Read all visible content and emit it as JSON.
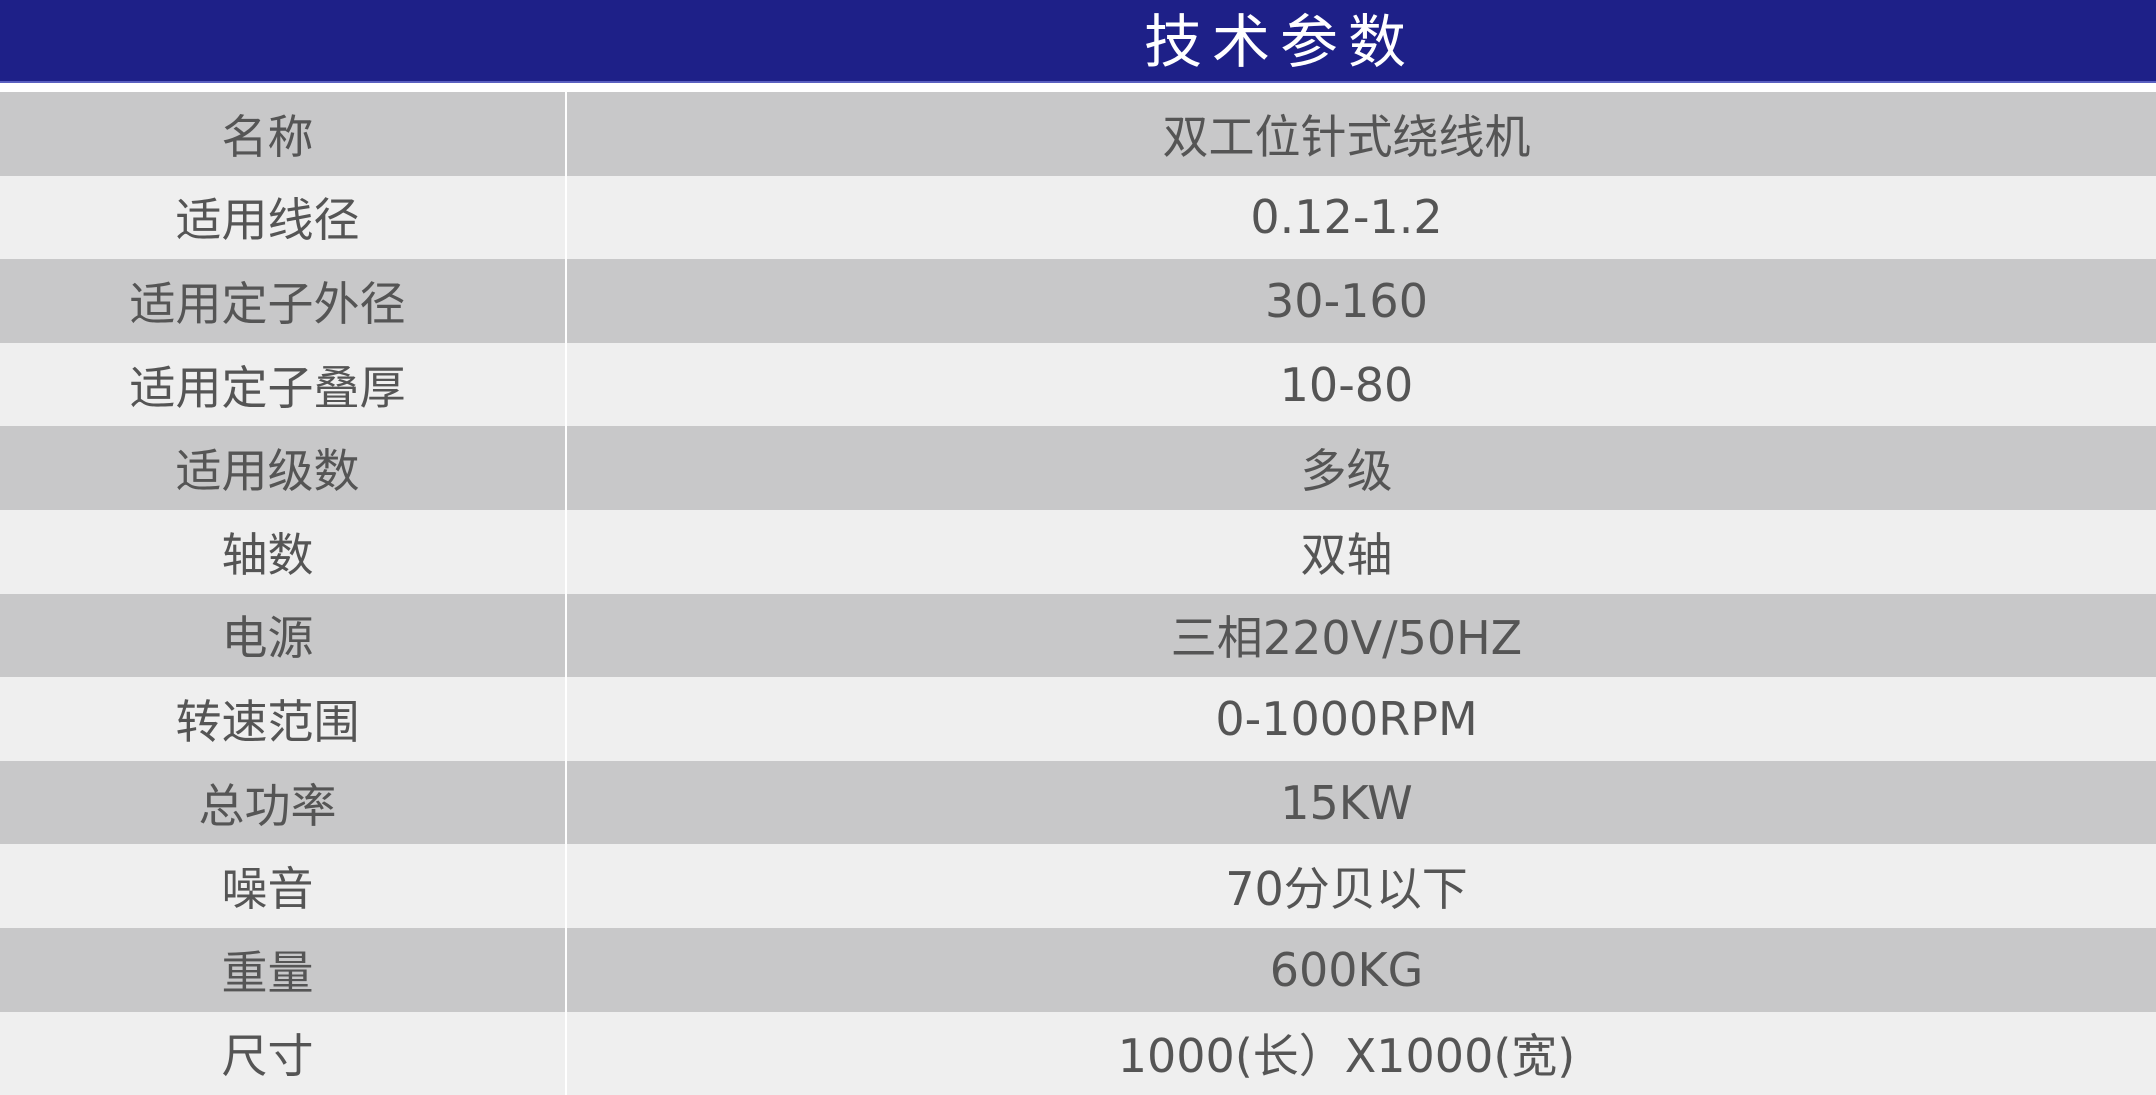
{
  "header": {
    "title": "技术参数",
    "color": "#1E2088"
  },
  "rows": [
    {
      "label": "名称",
      "value": "双工位针式绕线机"
    },
    {
      "label": "适用线径",
      "value": "0.12-1.2"
    },
    {
      "label": "适用定子外径",
      "value": "30-160"
    },
    {
      "label": "适用定子叠厚",
      "value": "10-80"
    },
    {
      "label": "适用级数",
      "value": "多级"
    },
    {
      "label": "轴数",
      "value": "双轴"
    },
    {
      "label": "电源",
      "value": "三相220V/50HZ"
    },
    {
      "label": "转速范围",
      "value": "0-1000RPM"
    },
    {
      "label": "总功率",
      "value": "15KW"
    },
    {
      "label": "噪音",
      "value": "70分贝以下"
    },
    {
      "label": "重量",
      "value": "600KG"
    },
    {
      "label": "尺寸",
      "value": "1000(长）X1000(宽)"
    }
  ]
}
